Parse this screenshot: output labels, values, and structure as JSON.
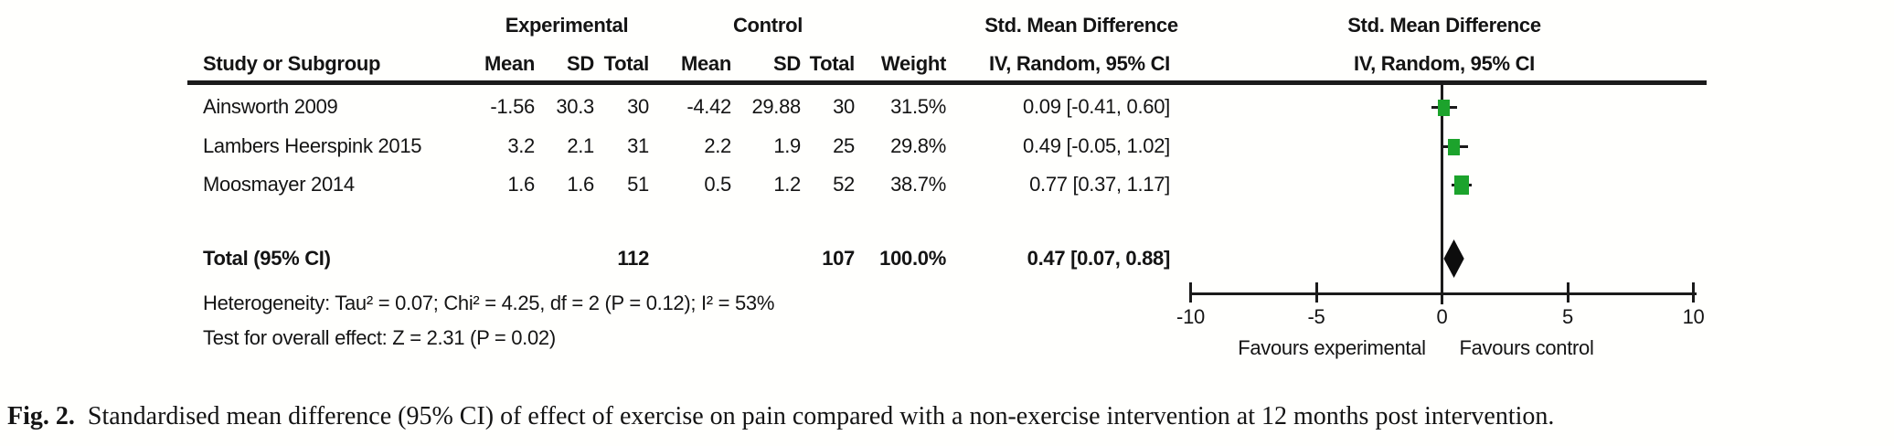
{
  "table": {
    "group_headers": {
      "experimental": "Experimental",
      "control": "Control",
      "smd_text_col": "Std. Mean Difference",
      "smd_plot_col": "Std. Mean Difference"
    },
    "col_headers": {
      "study": "Study or Subgroup",
      "mean_exp": "Mean",
      "sd_exp": "SD",
      "total_exp": "Total",
      "mean_ctrl": "Mean",
      "sd_ctrl": "SD",
      "total_ctrl": "Total",
      "weight": "Weight",
      "iv_text_col": "IV, Random, 95% CI",
      "iv_plot_col": "IV, Random, 95% CI"
    },
    "rows": [
      {
        "study": "Ainsworth 2009",
        "mean_e": "-1.56",
        "sd_e": "30.3",
        "total_e": "30",
        "mean_c": "-4.42",
        "sd_c": "29.88",
        "total_c": "30",
        "weight": "31.5%",
        "ci": "0.09 [-0.41, 0.60]"
      },
      {
        "study": "Lambers Heerspink 2015",
        "mean_e": "3.2",
        "sd_e": "2.1",
        "total_e": "31",
        "mean_c": "2.2",
        "sd_c": "1.9",
        "total_c": "25",
        "weight": "29.8%",
        "ci": "0.49 [-0.05, 1.02]"
      },
      {
        "study": "Moosmayer 2014",
        "mean_e": "1.6",
        "sd_e": "1.6",
        "total_e": "51",
        "mean_c": "0.5",
        "sd_c": "1.2",
        "total_c": "52",
        "weight": "38.7%",
        "ci": "0.77 [0.37, 1.17]"
      }
    ],
    "total_row": {
      "label": "Total (95% CI)",
      "total_e": "112",
      "total_c": "107",
      "weight": "100.0%",
      "ci": "0.47 [0.07, 0.88]"
    },
    "heterogeneity": "Heterogeneity: Tau² = 0.07; Chi² = 4.25, df = 2 (P = 0.12); I² = 53%",
    "overall_effect": "Test for overall effect: Z = 2.31 (P = 0.02)"
  },
  "plot": {
    "tick_labels": [
      "-10",
      "-5",
      "0",
      "5",
      "10"
    ],
    "favours_left": "Favours experimental",
    "favours_right": "Favours control",
    "marker_color": "#1ca32c",
    "diamond_color": "#0d0d0d"
  },
  "caption": {
    "fig_label": "Fig. 2.",
    "text": "Standardised mean difference (95% CI) of effect of exercise on pain compared with a non-exercise intervention at 12 months post intervention."
  },
  "chart_data": {
    "type": "forest",
    "effect_measure": "Std. Mean Difference",
    "method": "IV, Random, 95% CI",
    "xlim": [
      -10,
      10
    ],
    "x_ticks": [
      -10,
      -5,
      0,
      5,
      10
    ],
    "studies": [
      {
        "label": "Ainsworth 2009",
        "mean_exp": -1.56,
        "sd_exp": 30.3,
        "n_exp": 30,
        "mean_ctrl": -4.42,
        "sd_ctrl": 29.88,
        "n_ctrl": 30,
        "weight_pct": 31.5,
        "smd": 0.09,
        "ci_low": -0.41,
        "ci_high": 0.6
      },
      {
        "label": "Lambers Heerspink 2015",
        "mean_exp": 3.2,
        "sd_exp": 2.1,
        "n_exp": 31,
        "mean_ctrl": 2.2,
        "sd_ctrl": 1.9,
        "n_ctrl": 25,
        "weight_pct": 29.8,
        "smd": 0.49,
        "ci_low": -0.05,
        "ci_high": 1.02
      },
      {
        "label": "Moosmayer 2014",
        "mean_exp": 1.6,
        "sd_exp": 1.6,
        "n_exp": 51,
        "mean_ctrl": 0.5,
        "sd_ctrl": 1.2,
        "n_ctrl": 52,
        "weight_pct": 38.7,
        "smd": 0.77,
        "ci_low": 0.37,
        "ci_high": 1.17
      }
    ],
    "total": {
      "label": "Total (95% CI)",
      "n_exp": 112,
      "n_ctrl": 107,
      "weight_pct": 100.0,
      "smd": 0.47,
      "ci_low": 0.07,
      "ci_high": 0.88
    },
    "heterogeneity": {
      "tau2": 0.07,
      "chi2": 4.25,
      "df": 2,
      "p": 0.12,
      "i2_pct": 53
    },
    "overall_effect": {
      "z": 2.31,
      "p": 0.02
    },
    "favours_left": "Favours experimental",
    "favours_right": "Favours control"
  }
}
